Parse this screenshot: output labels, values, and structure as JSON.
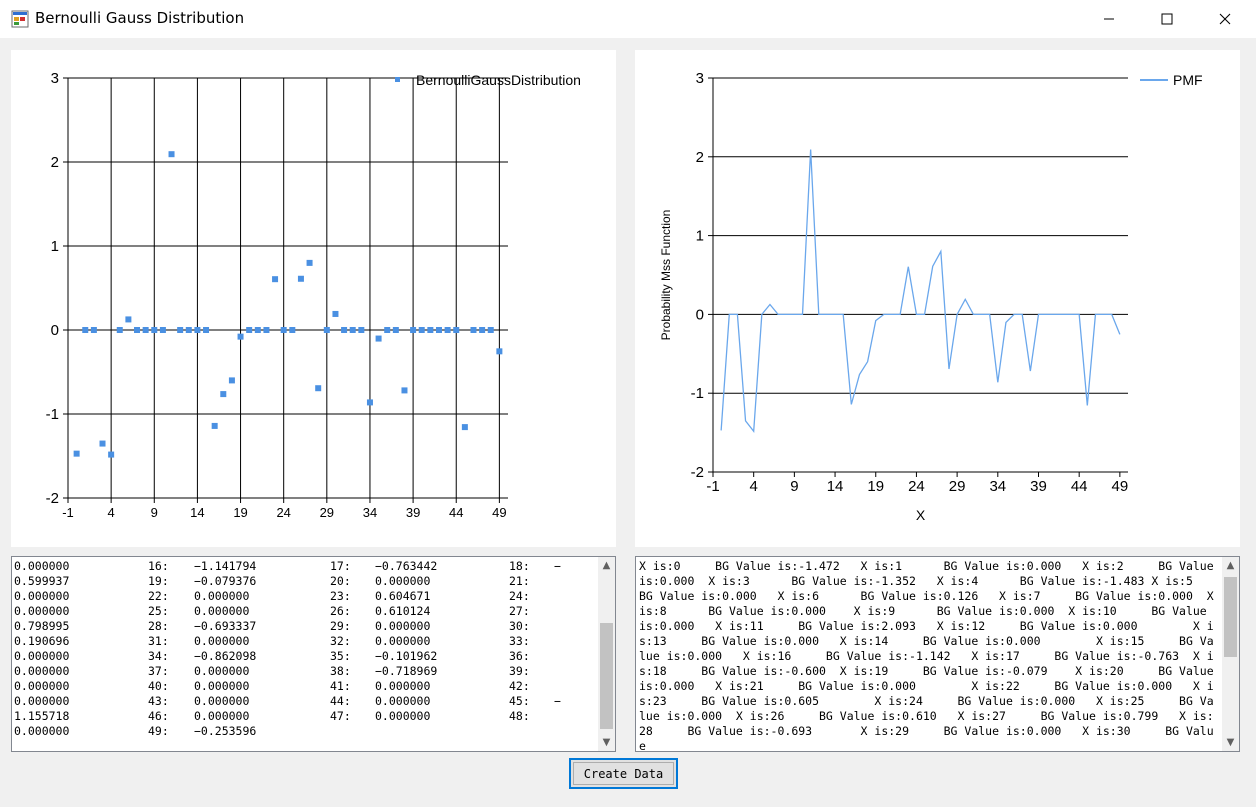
{
  "window": {
    "title": "Bernoulli Gauss Distribution",
    "controls": [
      "minimize",
      "maximize",
      "close"
    ]
  },
  "left_chart": {
    "legend": "BernoulliGaussDistribution",
    "color": "#4a90e2"
  },
  "right_chart": {
    "legend": "PMF",
    "ylabel": "Probability Mss Function",
    "xlabel": "X",
    "color": "#6aa7ec"
  },
  "chart_data": [
    {
      "type": "scatter",
      "title": "",
      "xlabel": "",
      "ylabel": "",
      "series": [
        {
          "name": "BernoulliGaussDistribution",
          "x": "0..49",
          "values": "see values"
        }
      ],
      "x": [
        0,
        1,
        2,
        3,
        4,
        5,
        6,
        7,
        8,
        9,
        10,
        11,
        12,
        13,
        14,
        15,
        16,
        17,
        18,
        19,
        20,
        21,
        22,
        23,
        24,
        25,
        26,
        27,
        28,
        29,
        30,
        31,
        32,
        33,
        34,
        35,
        36,
        37,
        38,
        39,
        40,
        41,
        42,
        43,
        44,
        45,
        46,
        47,
        48,
        49
      ],
      "values": [
        -1.472,
        0,
        0,
        -1.352,
        -1.483,
        0,
        0.126,
        0,
        0,
        0,
        0,
        2.093,
        0,
        0,
        0,
        0,
        -1.142,
        -0.763,
        -0.6,
        -0.079,
        0,
        0,
        0,
        0.605,
        0,
        0,
        0.61,
        0.799,
        -0.693,
        0,
        0.191,
        0,
        0,
        0,
        -0.862,
        -0.102,
        0,
        0,
        -0.719,
        0,
        0,
        0,
        0,
        0,
        0,
        -1.156,
        0,
        0,
        0,
        -0.254
      ],
      "xlim": [
        -1,
        50
      ],
      "ylim": [
        -2,
        3
      ],
      "xticks": [
        -1,
        4,
        9,
        14,
        19,
        24,
        29,
        34,
        39,
        44,
        49
      ],
      "yticks": [
        -2,
        -1,
        0,
        1,
        2,
        3
      ],
      "grid": true,
      "legend_position": "top-right"
    },
    {
      "type": "line",
      "title": "",
      "xlabel": "X",
      "ylabel": "Probability Mss Function",
      "series": [
        {
          "name": "PMF",
          "x": "0..49",
          "values": "same as scatter"
        }
      ],
      "x": [
        0,
        1,
        2,
        3,
        4,
        5,
        6,
        7,
        8,
        9,
        10,
        11,
        12,
        13,
        14,
        15,
        16,
        17,
        18,
        19,
        20,
        21,
        22,
        23,
        24,
        25,
        26,
        27,
        28,
        29,
        30,
        31,
        32,
        33,
        34,
        35,
        36,
        37,
        38,
        39,
        40,
        41,
        42,
        43,
        44,
        45,
        46,
        47,
        48,
        49
      ],
      "values": [
        -1.472,
        0,
        0,
        -1.352,
        -1.483,
        0,
        0.126,
        0,
        0,
        0,
        0,
        2.093,
        0,
        0,
        0,
        0,
        -1.142,
        -0.763,
        -0.6,
        -0.079,
        0,
        0,
        0,
        0.605,
        0,
        0,
        0.61,
        0.799,
        -0.693,
        0,
        0.191,
        0,
        0,
        0,
        -0.862,
        -0.102,
        0,
        0,
        -0.719,
        0,
        0,
        0,
        0,
        0,
        0,
        -1.156,
        0,
        0,
        0,
        -0.254
      ],
      "xlim": [
        -1,
        50
      ],
      "ylim": [
        -2,
        3
      ],
      "xticks": [
        -1,
        4,
        9,
        14,
        19,
        24,
        29,
        34,
        39,
        44,
        49
      ],
      "yticks": [
        -2,
        -1,
        0,
        1,
        2,
        3
      ],
      "grid": true,
      "legend_position": "top-right"
    }
  ],
  "left_textbox": {
    "rows": [
      [
        "0.000000",
        "16:",
        "−1.141794",
        "17:",
        "−0.763442",
        "18:",
        "−"
      ],
      [
        "0.599937",
        "19:",
        "−0.079376",
        "20:",
        "0.000000",
        "21:",
        ""
      ],
      [
        "0.000000",
        "22:",
        "0.000000",
        "23:",
        "0.604671",
        "24:",
        ""
      ],
      [
        "0.000000",
        "25:",
        "0.000000",
        "26:",
        "0.610124",
        "27:",
        ""
      ],
      [
        "0.798995",
        "28:",
        "−0.693337",
        "29:",
        "0.000000",
        "30:",
        ""
      ],
      [
        "0.190696",
        "31:",
        "0.000000",
        "32:",
        "0.000000",
        "33:",
        ""
      ],
      [
        "0.000000",
        "34:",
        "−0.862098",
        "35:",
        "−0.101962",
        "36:",
        ""
      ],
      [
        "0.000000",
        "37:",
        "0.000000",
        "38:",
        "−0.718969",
        "39:",
        ""
      ],
      [
        "0.000000",
        "40:",
        "0.000000",
        "41:",
        "0.000000",
        "42:",
        ""
      ],
      [
        "0.000000",
        "43:",
        "0.000000",
        "44:",
        "0.000000",
        "45:",
        "−"
      ],
      [
        "1.155718",
        "46:",
        "0.000000",
        "47:",
        "0.000000",
        "48:",
        ""
      ],
      [
        "0.000000",
        "49:",
        "−0.253596",
        "",
        "",
        "",
        ""
      ]
    ]
  },
  "right_textbox": {
    "text": "X is:0     BG Value is:-1.472   X is:1      BG Value is:0.000   X is:2     BG Value is:0.000  X is:3      BG Value is:-1.352   X is:4      BG Value is:-1.483 X is:5      BG Value is:0.000   X is:6      BG Value is:0.126   X is:7     BG Value is:0.000  X is:8      BG Value is:0.000    X is:9      BG Value is:0.000  X is:10     BG Value is:0.000   X is:11     BG Value is:2.093   X is:12     BG Value is:0.000        X is:13     BG Value is:0.000   X is:14     BG Value is:0.000        X is:15     BG Value is:0.000   X is:16     BG Value is:-1.142   X is:17     BG Value is:-0.763  X is:18     BG Value is:-0.600  X is:19     BG Value is:-0.079    X is:20     BG Value is:0.000   X is:21     BG Value is:0.000        X is:22     BG Value is:0.000   X is:23     BG Value is:0.605        X is:24     BG Value is:0.000   X is:25     BG Value is:0.000  X is:26     BG Value is:0.610   X is:27     BG Value is:0.799   X is:28     BG Value is:-0.693       X is:29     BG Value is:0.000   X is:30     BG Value"
  },
  "buttons": {
    "create_data": "Create Data"
  }
}
